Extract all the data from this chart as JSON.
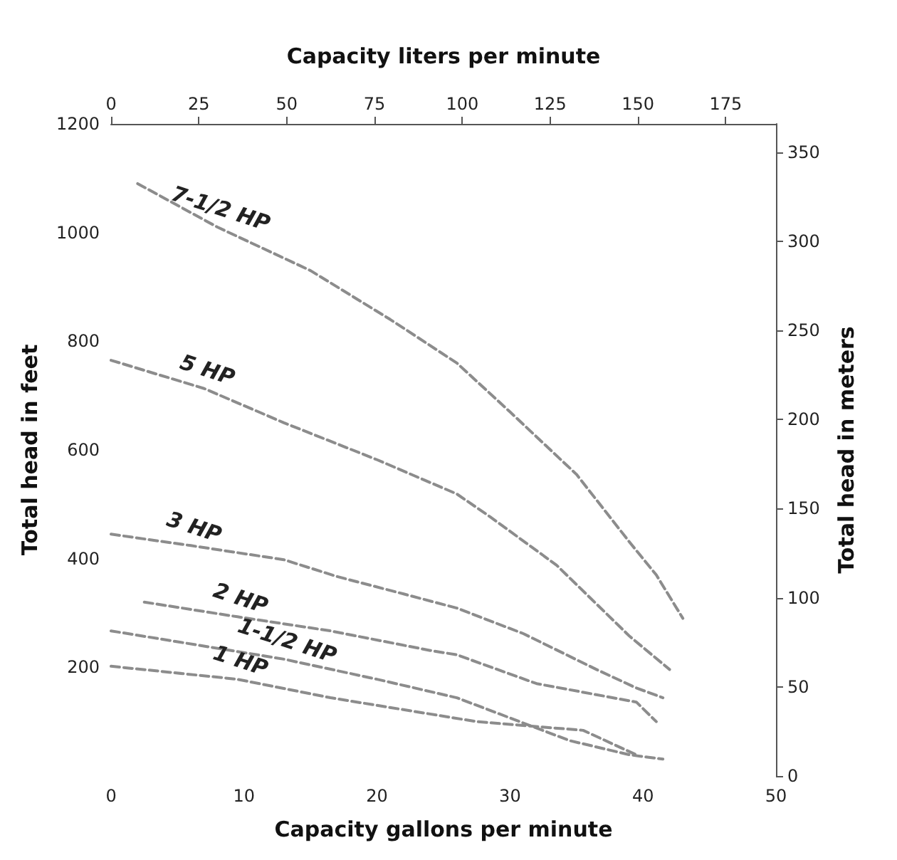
{
  "chart_data": {
    "type": "line",
    "xlabel": "Capacity gallons per minute",
    "ylabel": "Total head in feet",
    "x2label": "Capacity liters per minute",
    "y2label": "Total head in meters",
    "xlim": [
      0,
      50
    ],
    "xticks": [
      0,
      10,
      20,
      30,
      40,
      50
    ],
    "ylim": [
      0,
      1200
    ],
    "yticks": [
      200,
      400,
      600,
      800,
      1000,
      1200
    ],
    "x2lim": [
      0,
      189.3
    ],
    "x2ticks": [
      0,
      25,
      50,
      75,
      100,
      125,
      150,
      175
    ],
    "y2lim": [
      0,
      365.8
    ],
    "y2ticks": [
      0,
      50,
      100,
      150,
      200,
      250,
      300,
      350
    ],
    "grid": false,
    "legend": false,
    "marker": "none",
    "line_style": "dashed",
    "series": [
      {
        "name": "7-1/2 HP",
        "color": "#8c8c8c",
        "x": [
          2,
          8,
          15,
          21,
          26,
          30,
          35,
          39,
          41,
          43
        ],
        "values": [
          1090,
          1010,
          930,
          840,
          760,
          670,
          555,
          430,
          370,
          290
        ]
      },
      {
        "name": "5 HP",
        "color": "#8c8c8c",
        "x": [
          0,
          7,
          13,
          20,
          26,
          28.5,
          33.5,
          39,
          42
        ],
        "values": [
          765,
          713,
          650,
          582,
          519,
          477,
          388,
          257,
          196
        ]
      },
      {
        "name": "3 HP",
        "color": "#8c8c8c",
        "x": [
          0,
          6,
          13,
          17,
          22,
          26,
          31,
          36.5,
          39.5,
          41.5
        ],
        "values": [
          445,
          424,
          398,
          367,
          335,
          309,
          262,
          196,
          162,
          144
        ]
      },
      {
        "name": "2 HP",
        "color": "#8c8c8c",
        "x": [
          2.5,
          9.5,
          16.5,
          24,
          26,
          32,
          39.5,
          41
        ],
        "values": [
          320,
          293,
          267,
          231,
          223,
          170,
          136,
          100
        ]
      },
      {
        "name": "1-1/2 HP",
        "color": "#8c8c8c",
        "x": [
          0,
          13,
          20,
          26,
          34.5,
          39,
          41.5
        ],
        "values": [
          267,
          215,
          178,
          144,
          65,
          39,
          31
        ]
      },
      {
        "name": "1 HP",
        "color": "#8c8c8c",
        "x": [
          0,
          9.5,
          16.5,
          27.5,
          35.5,
          39.5
        ],
        "values": [
          202,
          178,
          144,
          100,
          84,
          39
        ]
      }
    ]
  }
}
